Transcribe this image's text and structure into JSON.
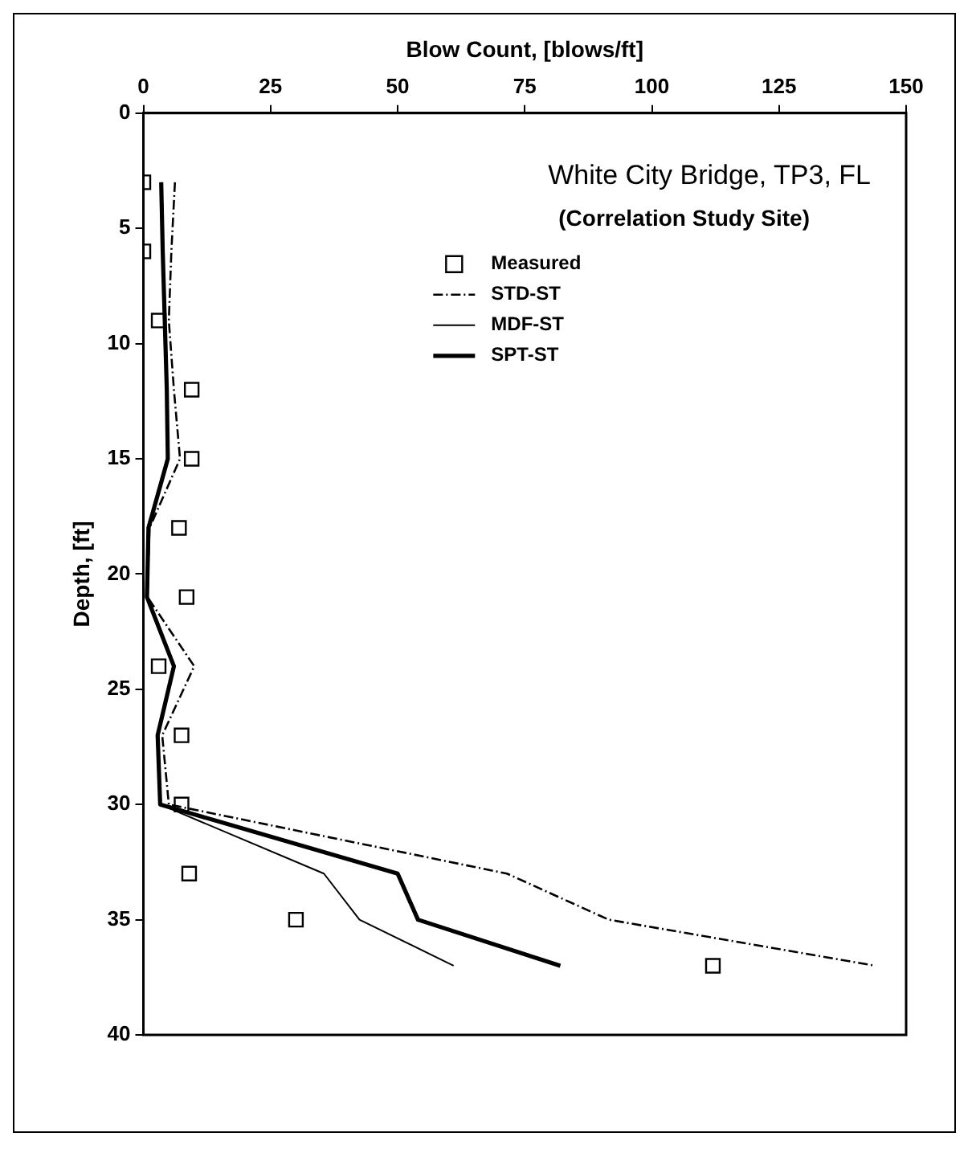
{
  "chart_data": {
    "type": "line",
    "title": "White City Bridge, TP3, FL",
    "subtitle": "(Correlation Study Site)",
    "xlabel": "Blow Count, [blows/ft]",
    "ylabel": "Depth, [ft]",
    "xlim": [
      0,
      150
    ],
    "xticks": [
      0,
      25,
      50,
      75,
      100,
      125,
      150
    ],
    "ylim": [
      40,
      0
    ],
    "yticks": [
      0,
      5,
      10,
      15,
      20,
      25,
      30,
      35,
      40
    ],
    "grid": false,
    "legend": "top right",
    "series": [
      {
        "name": "Measured",
        "type": "scatter",
        "marker": "square",
        "color": "#000000",
        "x": [
          0,
          0,
          3,
          9.5,
          9.5,
          7,
          8.5,
          3,
          7.5,
          7.5,
          9,
          30,
          112
        ],
        "values": [
          3,
          6,
          9,
          12,
          15,
          18,
          21,
          24,
          27,
          30,
          33,
          35,
          37
        ]
      },
      {
        "name": "STD-ST",
        "marker": "none",
        "line_style": "dashed",
        "color": "#000000",
        "x": [
          6.2,
          5.5,
          5,
          6,
          7.2,
          1.2,
          0.8,
          10,
          3.7,
          5,
          71.5,
          91.5,
          144
        ],
        "values": [
          3,
          6,
          9,
          12,
          15,
          18,
          21,
          24,
          27,
          30,
          33,
          35,
          37
        ]
      },
      {
        "name": "MDF-ST",
        "marker": "none",
        "line_style": "solid",
        "color": "#000000",
        "x": [
          3.5,
          3.8,
          4.2,
          4.6,
          4.8,
          1,
          0.7,
          6,
          2.8,
          3.3,
          35.5,
          42.5,
          61
        ],
        "values": [
          3,
          6,
          9,
          12,
          15,
          18,
          21,
          24,
          27,
          30,
          33,
          35,
          37
        ]
      },
      {
        "name": "SPT-ST",
        "marker": "none",
        "line_style": "solid",
        "color": "#000000",
        "x": [
          3.5,
          3.8,
          4.2,
          4.6,
          4.8,
          1,
          0.7,
          6,
          2.8,
          3.3,
          50,
          54,
          82
        ],
        "values": [
          3,
          6,
          9,
          12,
          15,
          18,
          21,
          24,
          27,
          30,
          33,
          35,
          37
        ]
      }
    ]
  }
}
